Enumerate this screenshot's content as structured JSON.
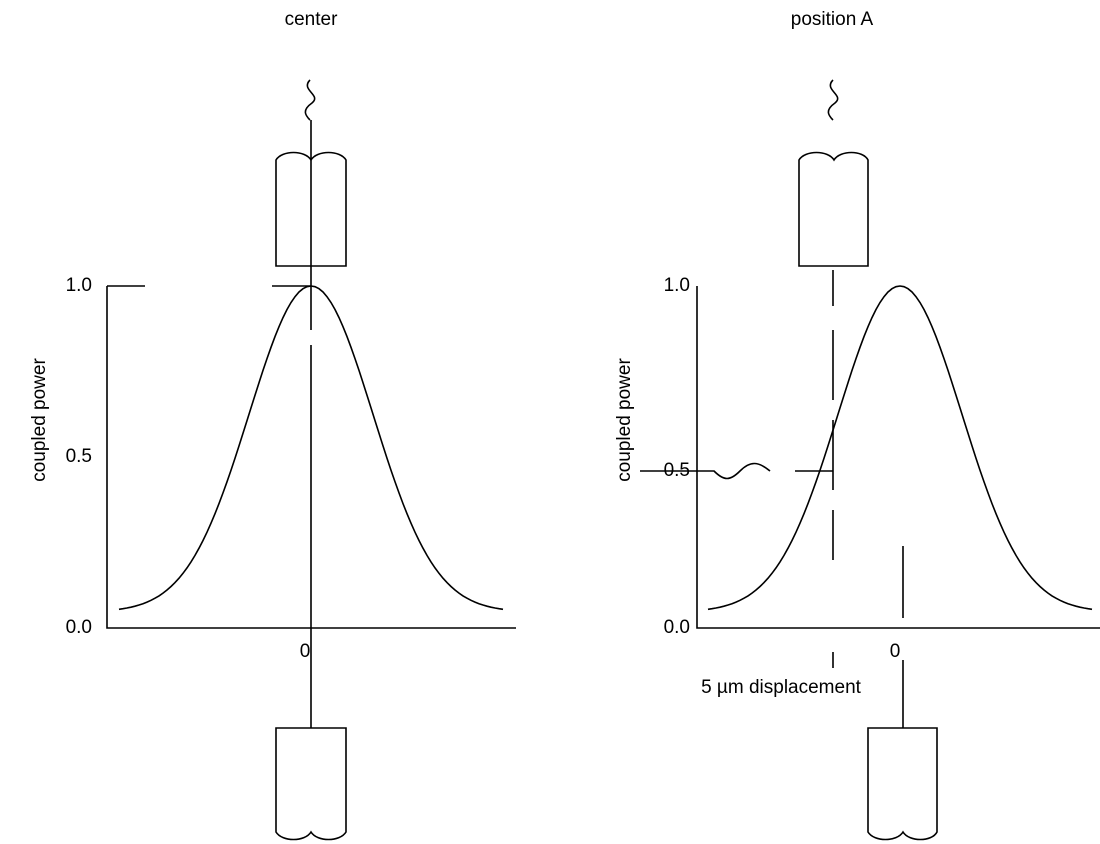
{
  "panels": [
    {
      "title": "center",
      "y_label": "coupled power",
      "y_ticks": [
        "1.0",
        "0.5",
        "0.0"
      ],
      "x_tick": "0"
    },
    {
      "title": "position A",
      "y_label": "coupled power",
      "y_ticks": [
        "1.0",
        "0.5",
        "0.0"
      ],
      "x_tick": "0",
      "annotation": "5 µm displacement"
    }
  ]
}
